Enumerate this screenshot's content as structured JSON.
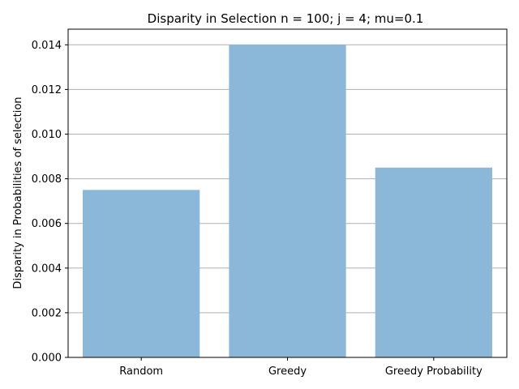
{
  "chart_data": {
    "type": "bar",
    "title": "Disparity in Selection n = 100; j = 4; mu=0.1",
    "xlabel": "",
    "ylabel": "Disparity in Probabilities of selection",
    "categories": [
      "Random",
      "Greedy",
      "Greedy Probability"
    ],
    "values": [
      0.0075,
      0.014,
      0.0085
    ],
    "ylim": [
      0,
      0.0147
    ],
    "yticks": [
      0,
      0.002,
      0.004,
      0.006,
      0.008,
      0.01,
      0.012,
      0.014
    ],
    "ytick_labels": [
      "0.000",
      "0.002",
      "0.004",
      "0.006",
      "0.008",
      "0.010",
      "0.012",
      "0.014"
    ],
    "grid": "y",
    "bar_color": "#8bb8d9",
    "grid_color": "#b0b0b0"
  }
}
